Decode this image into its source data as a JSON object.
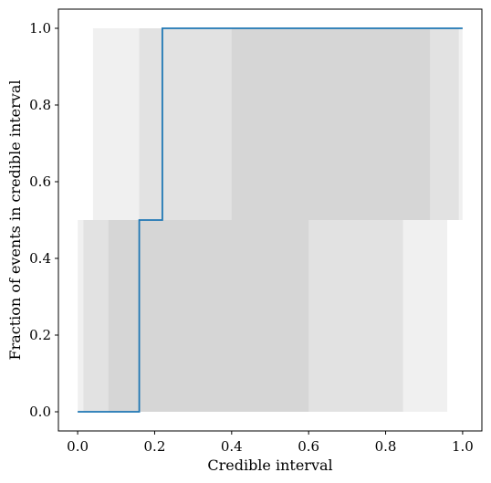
{
  "chart_data": {
    "type": "area",
    "xlabel": "Credible interval",
    "ylabel": "Fraction of events in credible interval",
    "xlim": [
      -0.05,
      1.05
    ],
    "ylim": [
      -0.05,
      1.05
    ],
    "xticks": [
      0.0,
      0.2,
      0.4,
      0.6,
      0.8,
      1.0
    ],
    "yticks": [
      0.0,
      0.2,
      0.4,
      0.6,
      0.8,
      1.0
    ],
    "xtick_labels": [
      "0.0",
      "0.2",
      "0.4",
      "0.6",
      "0.8",
      "1.0"
    ],
    "ytick_labels": [
      "0.0",
      "0.2",
      "0.4",
      "0.6",
      "0.8",
      "1.0"
    ],
    "grid": false,
    "band_color": "#808080",
    "band_opacity": 0.12,
    "bands": [
      {
        "x0": 0.0,
        "x1": 0.96,
        "y0": 0.0,
        "y1": 0.5
      },
      {
        "x0": 0.04,
        "x1": 1.0,
        "y0": 0.5,
        "y1": 1.0
      },
      {
        "x0": 0.015,
        "x1": 0.845,
        "y0": 0.0,
        "y1": 0.5
      },
      {
        "x0": 0.16,
        "x1": 0.99,
        "y0": 0.5,
        "y1": 1.0
      },
      {
        "x0": 0.08,
        "x1": 0.6,
        "y0": 0.0,
        "y1": 0.5
      },
      {
        "x0": 0.4,
        "x1": 0.915,
        "y0": 0.5,
        "y1": 1.0
      }
    ],
    "series": [
      {
        "color": "#1f77b4",
        "x": [
          0.0,
          0.16,
          0.16,
          0.22,
          0.22,
          1.0
        ],
        "y": [
          0.0,
          0.0,
          0.5,
          0.5,
          1.0,
          1.0
        ]
      }
    ]
  }
}
